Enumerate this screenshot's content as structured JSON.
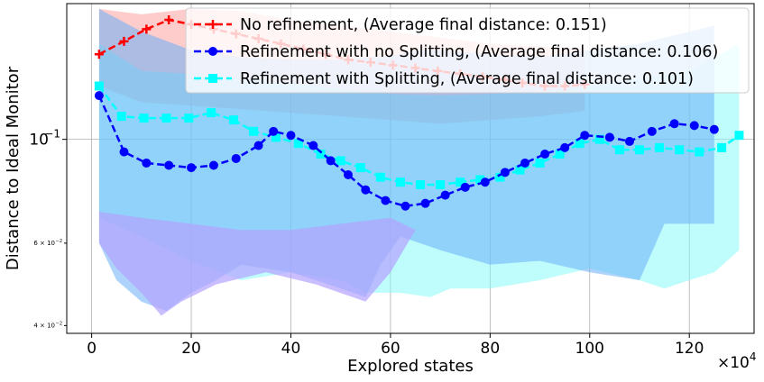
{
  "chart_data": {
    "type": "line",
    "yscale": "log",
    "xlabel": "Explored states",
    "ylabel": "Distance to Ideal Monitor",
    "x_multiplier_label": "×10",
    "x_multiplier_exp": "4",
    "xlim": [
      -5,
      133
    ],
    "ylim": [
      0.0385,
      0.195
    ],
    "xticks": [
      0,
      20,
      40,
      60,
      80,
      100,
      120
    ],
    "xtick_labels": [
      "0",
      "20",
      "40",
      "60",
      "80",
      "100",
      "120"
    ],
    "yticks": [
      0.1,
      0.06,
      0.04
    ],
    "ytick_labels": [
      {
        "base": "10",
        "exp": "−1"
      },
      {
        "base": "6 × 10",
        "exp": "−2"
      },
      {
        "base": "4 × 10",
        "exp": "−2"
      }
    ],
    "grid": true,
    "legend_position": "top-right",
    "series": [
      {
        "name": "No refinement, (Average final distance: 0.151)",
        "color": "#ff0000",
        "marker": "plus",
        "x": [
          1.5,
          6.5,
          11,
          15.5,
          20,
          24.5,
          29,
          33.5,
          38,
          42.5,
          47,
          51.5,
          56,
          60.5,
          65,
          69.5,
          74,
          78.5,
          83,
          86.5,
          91,
          95,
          99
        ],
        "y": [
          0.152,
          0.162,
          0.172,
          0.18,
          0.176,
          0.172,
          0.168,
          0.164,
          0.16,
          0.156,
          0.152,
          0.148,
          0.146,
          0.144,
          0.142,
          0.14,
          0.138,
          0.136,
          0.134,
          0.132,
          0.13,
          0.13,
          0.131
        ],
        "band": {
          "x": [
            1.5,
            10,
            20,
            30,
            40,
            50,
            60,
            70,
            80,
            90,
            99,
            99,
            90,
            80,
            70,
            60,
            50,
            40,
            30,
            20,
            10,
            1.5
          ],
          "y": [
            0.19,
            0.185,
            0.19,
            0.188,
            0.18,
            0.175,
            0.17,
            0.165,
            0.16,
            0.158,
            0.156,
            0.115,
            0.112,
            0.11,
            0.108,
            0.11,
            0.112,
            0.114,
            0.116,
            0.118,
            0.12,
            0.13
          ],
          "color": "#ff9a9a",
          "opacity": 0.5
        }
      },
      {
        "name": "Refinement with no Splitting, (Average final distance: 0.106)",
        "color": "#0000ff",
        "marker": "circle",
        "x": [
          1.5,
          6.5,
          11,
          15.5,
          20,
          24.5,
          29,
          33.5,
          36.5,
          40,
          44.5,
          48,
          51.5,
          55,
          59,
          63,
          67,
          71,
          75,
          79,
          83,
          87,
          91,
          95,
          99,
          104,
          108,
          112.5,
          117,
          121,
          125
        ],
        "y": [
          0.124,
          0.094,
          0.089,
          0.088,
          0.087,
          0.088,
          0.091,
          0.097,
          0.104,
          0.102,
          0.097,
          0.09,
          0.084,
          0.078,
          0.074,
          0.072,
          0.073,
          0.076,
          0.079,
          0.081,
          0.085,
          0.089,
          0.093,
          0.096,
          0.102,
          0.101,
          0.099,
          0.104,
          0.108,
          0.107,
          0.105
        ],
        "band": {
          "x": [
            1.5,
            10,
            20,
            30,
            40,
            45,
            50,
            55,
            58,
            62,
            65,
            70,
            80,
            90,
            100,
            110,
            125,
            125,
            115,
            110,
            100,
            90,
            80,
            70,
            62,
            58,
            55,
            50,
            45,
            40,
            30,
            25,
            20,
            15,
            10,
            5,
            1.5
          ],
          "y": [
            0.19,
            0.17,
            0.155,
            0.15,
            0.148,
            0.148,
            0.148,
            0.15,
            0.15,
            0.152,
            0.155,
            0.155,
            0.152,
            0.15,
            0.155,
            0.16,
            0.175,
            0.066,
            0.066,
            0.05,
            0.052,
            0.055,
            0.054,
            0.058,
            0.062,
            0.054,
            0.046,
            0.048,
            0.05,
            0.052,
            0.054,
            0.05,
            0.047,
            0.043,
            0.045,
            0.05,
            0.06
          ],
          "color": "#6aaef5",
          "opacity": 0.55
        }
      },
      {
        "name": "Refinement with Splitting, (Average final distance: 0.101)",
        "color": "#00ffff",
        "marker": "square",
        "x": [
          1.5,
          6,
          10.5,
          15,
          19.5,
          24,
          28.5,
          32.5,
          37,
          41.5,
          46,
          50,
          54,
          58,
          62,
          66,
          70,
          74,
          78,
          82,
          86,
          90,
          94,
          98,
          102,
          106,
          110,
          114,
          118,
          122,
          126.5,
          130
        ],
        "y": [
          0.13,
          0.112,
          0.111,
          0.111,
          0.111,
          0.114,
          0.11,
          0.104,
          0.101,
          0.098,
          0.093,
          0.09,
          0.087,
          0.083,
          0.081,
          0.08,
          0.08,
          0.081,
          0.082,
          0.083,
          0.086,
          0.089,
          0.093,
          0.098,
          0.1,
          0.095,
          0.095,
          0.096,
          0.095,
          0.094,
          0.096,
          0.102
        ],
        "band": {
          "x": [
            1.5,
            10,
            20,
            30,
            40,
            50,
            60,
            70,
            80,
            90,
            100,
            110,
            120,
            130,
            130,
            125,
            120,
            115,
            110,
            100,
            90,
            80,
            72,
            68,
            62,
            55,
            50,
            40,
            30,
            20,
            10,
            1.5
          ],
          "y": [
            0.16,
            0.14,
            0.138,
            0.135,
            0.132,
            0.128,
            0.125,
            0.124,
            0.125,
            0.126,
            0.13,
            0.135,
            0.14,
            0.16,
            0.058,
            0.052,
            0.05,
            0.048,
            0.05,
            0.053,
            0.05,
            0.048,
            0.048,
            0.046,
            0.047,
            0.047,
            0.05,
            0.052,
            0.05,
            0.055,
            0.062,
            0.068
          ],
          "color": "#7ffafa",
          "opacity": 0.5
        }
      }
    ],
    "extra_bands": [
      {
        "name": "lower-purple-band",
        "x": [
          1.5,
          10,
          20,
          30,
          40,
          50,
          60,
          65,
          60,
          55,
          45,
          35,
          25,
          18,
          14,
          10,
          5,
          1.5
        ],
        "y": [
          0.07,
          0.068,
          0.066,
          0.064,
          0.064,
          0.066,
          0.068,
          0.064,
          0.052,
          0.045,
          0.049,
          0.052,
          0.049,
          0.045,
          0.042,
          0.047,
          0.053,
          0.06
        ],
        "color": "#b3a3ff",
        "opacity": 0.7
      }
    ]
  }
}
